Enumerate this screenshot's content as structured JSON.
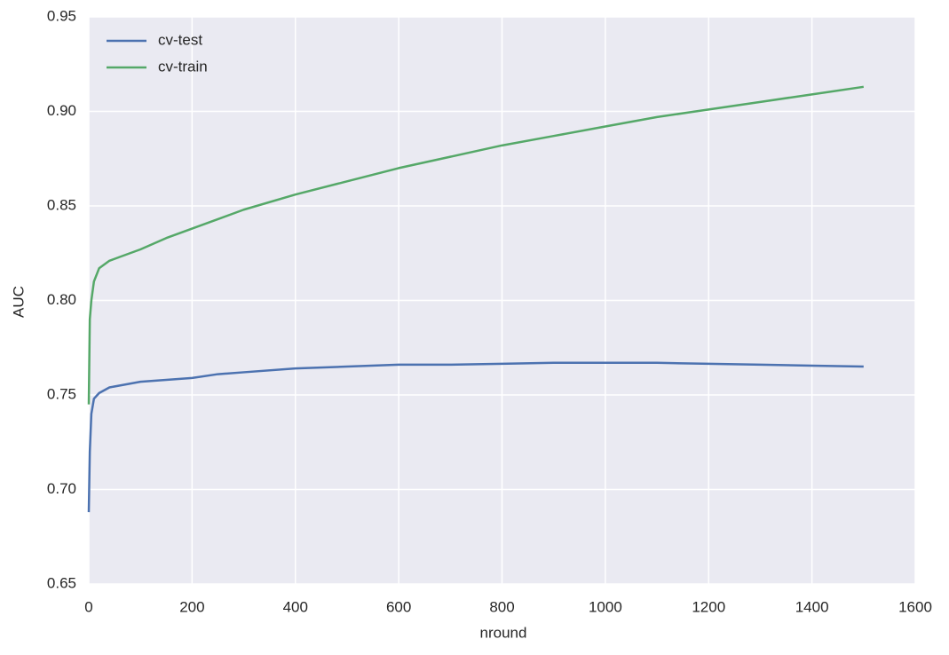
{
  "chart_data": {
    "type": "line",
    "xlabel": "nround",
    "ylabel": "AUC",
    "x": [
      0,
      2,
      5,
      10,
      20,
      40,
      60,
      100,
      150,
      200,
      250,
      300,
      400,
      500,
      600,
      700,
      800,
      900,
      1000,
      1100,
      1200,
      1300,
      1400,
      1500
    ],
    "series": [
      {
        "name": "cv-test",
        "color": "#4c72b0",
        "values": [
          0.688,
          0.72,
          0.74,
          0.748,
          0.751,
          0.754,
          0.755,
          0.757,
          0.758,
          0.759,
          0.761,
          0.762,
          0.764,
          0.765,
          0.766,
          0.766,
          0.7665,
          0.767,
          0.767,
          0.767,
          0.7665,
          0.766,
          0.7655,
          0.765
        ]
      },
      {
        "name": "cv-train",
        "color": "#55a868",
        "values": [
          0.745,
          0.79,
          0.8,
          0.81,
          0.817,
          0.821,
          0.823,
          0.827,
          0.833,
          0.838,
          0.843,
          0.848,
          0.856,
          0.863,
          0.87,
          0.876,
          0.882,
          0.887,
          0.892,
          0.897,
          0.901,
          0.905,
          0.909,
          0.913
        ]
      }
    ],
    "xlim": [
      0,
      1600
    ],
    "xticks": [
      0,
      200,
      400,
      600,
      800,
      1000,
      1200,
      1400,
      1600
    ],
    "ylim": [
      0.65,
      0.95
    ],
    "yticks": [
      0.65,
      {
        "value": 0.7,
        "label": "0.70"
      },
      0.75,
      {
        "value": 0.8,
        "label": "0.80"
      },
      0.85,
      {
        "value": 0.9,
        "label": "0.90"
      },
      0.95
    ],
    "grid": true,
    "legend": "upper-left"
  }
}
